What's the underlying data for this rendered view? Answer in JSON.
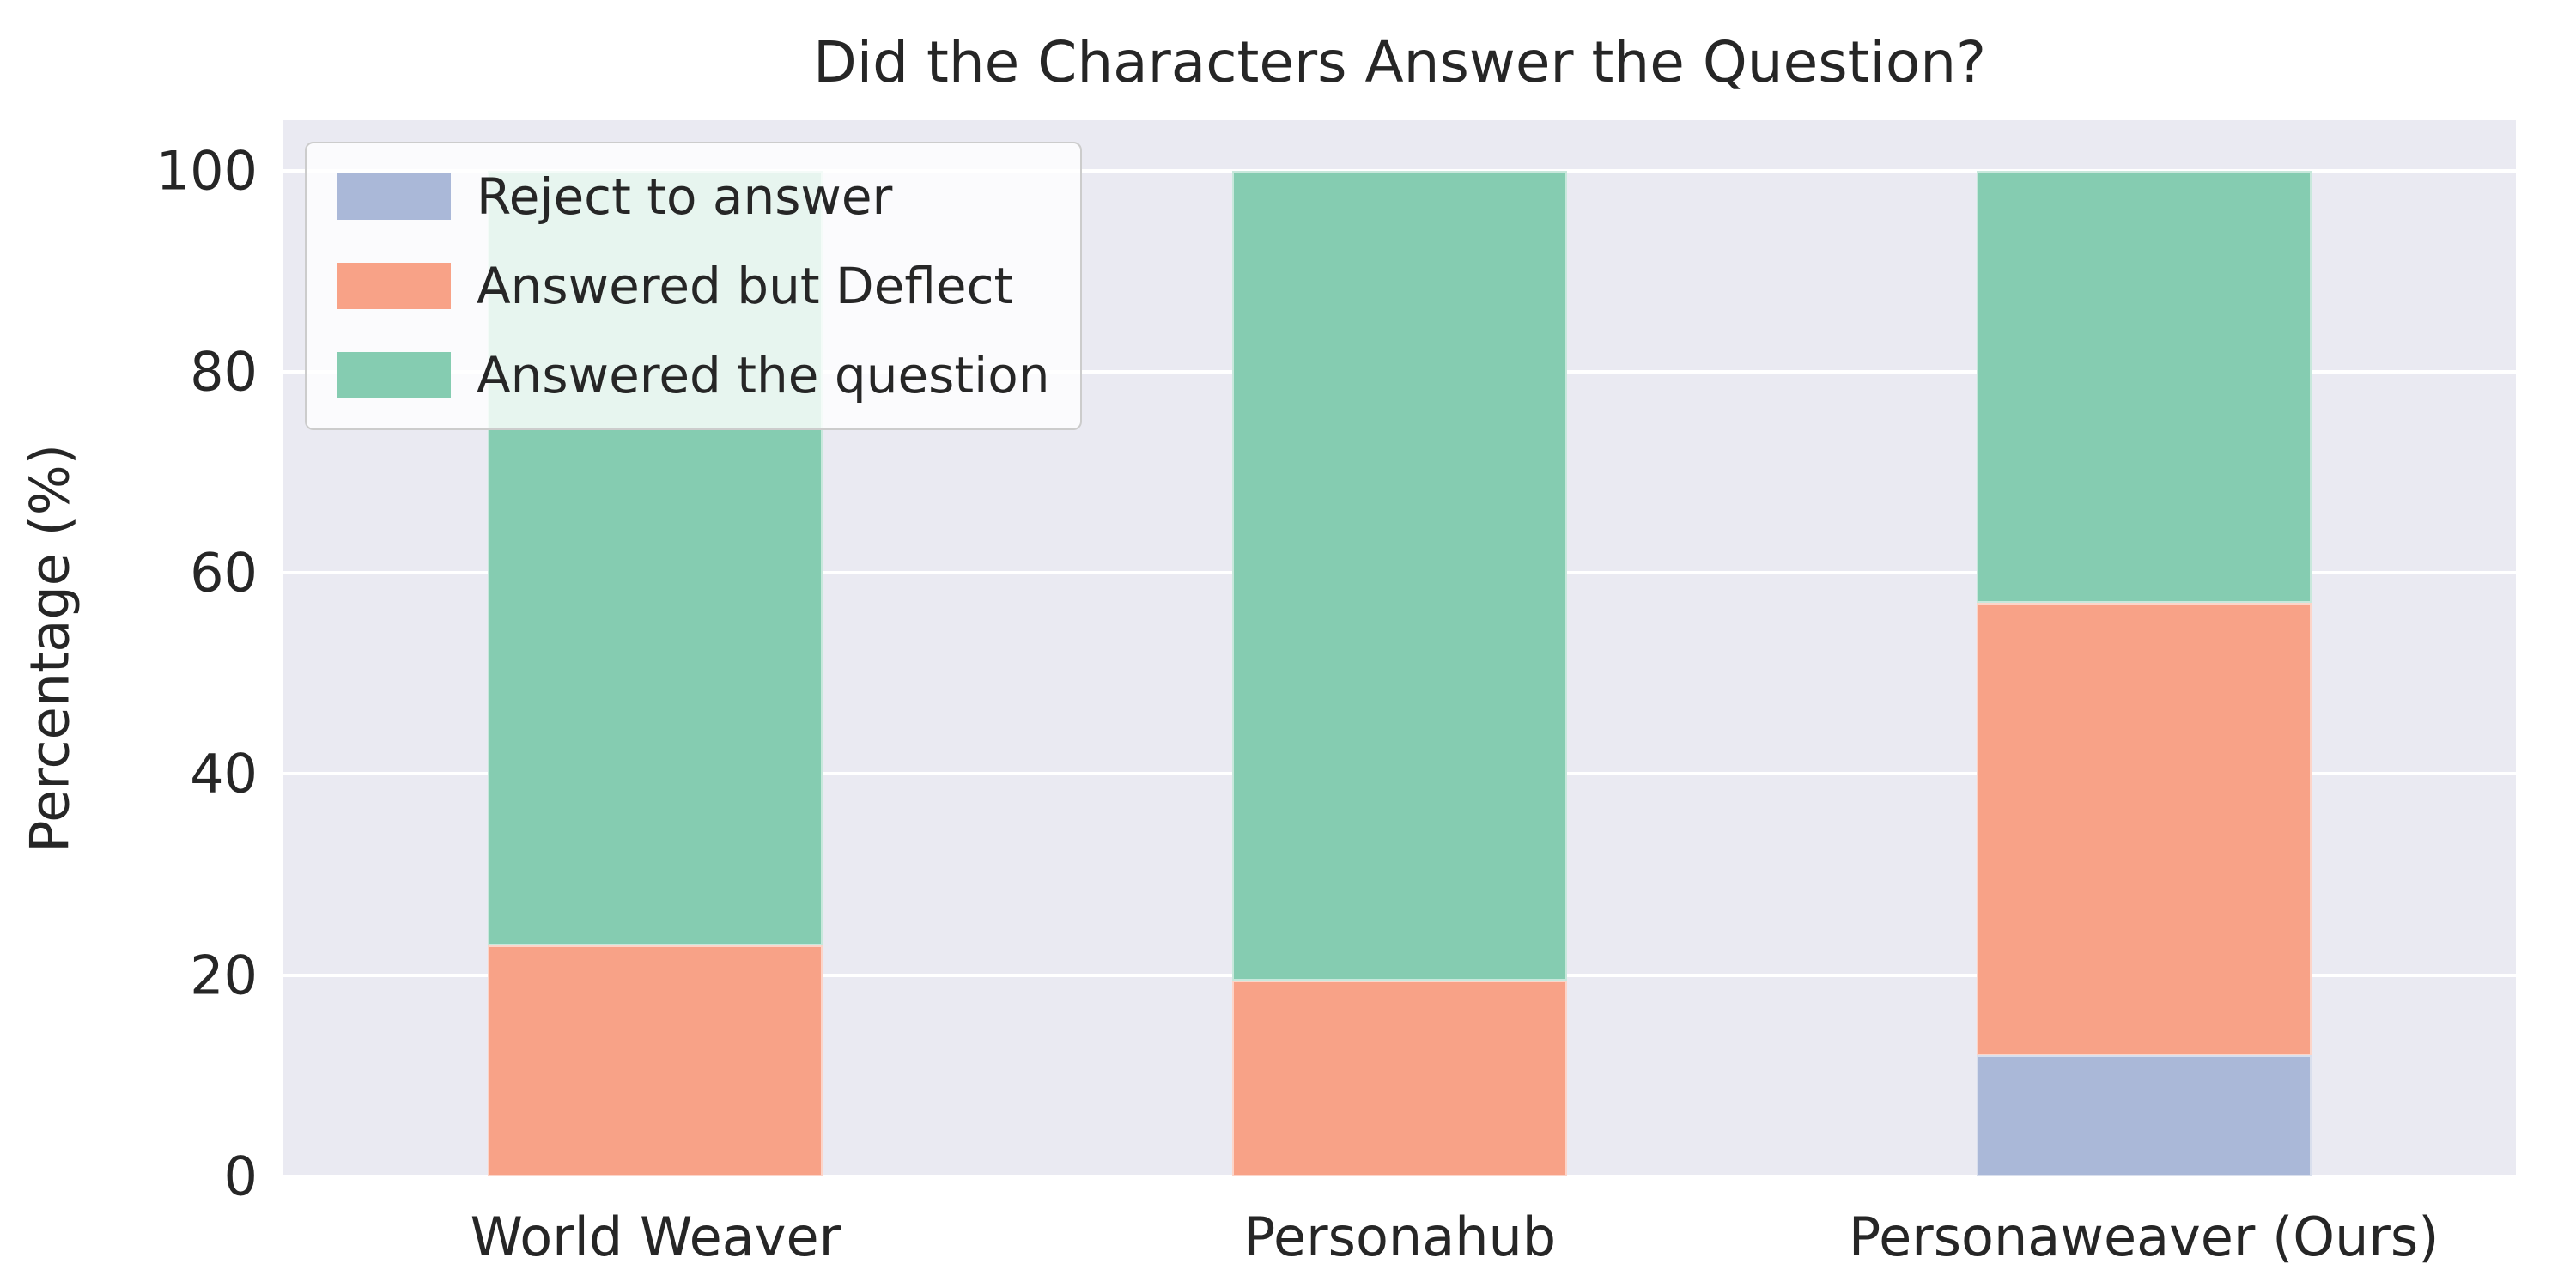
{
  "figure": {
    "background": "#ffffff",
    "text_color": "#262626"
  },
  "chart_data": {
    "type": "bar",
    "stacked": true,
    "title": "Did the Characters Answer the Question?",
    "xlabel": "",
    "ylabel": "Percentage (%)",
    "categories": [
      "World Weaver",
      "Personahub",
      "Personaweaver (Ours)"
    ],
    "series": [
      {
        "name": "Reject to answer",
        "color": "#aab8d8",
        "values": [
          0,
          0,
          12
        ]
      },
      {
        "name": "Answered but Deflect",
        "color": "#f8a287",
        "values": [
          23,
          19.5,
          45
        ]
      },
      {
        "name": "Answered the question",
        "color": "#85ccb1",
        "values": [
          77,
          80.5,
          43
        ]
      }
    ],
    "yticks": [
      0,
      20,
      40,
      60,
      80,
      100
    ],
    "ylim": [
      0,
      105
    ],
    "grid": true,
    "legend_position": "upper left",
    "plot_background": "#eaeaf2",
    "gridline_color": "#ffffff",
    "bar_width_fraction": 0.15
  }
}
